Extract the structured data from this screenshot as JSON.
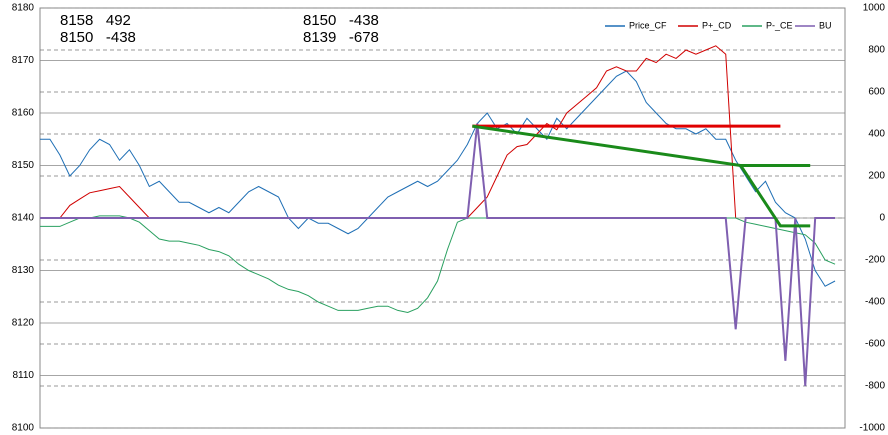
{
  "chart_data": {
    "type": "line",
    "annotations": [
      "8158   492",
      "8150   -438",
      "8150   -438",
      "8139   -678"
    ],
    "categories": [
      null,
      null,
      null,
      null,
      null,
      null,
      null,
      null,
      null,
      null,
      null,
      null,
      null,
      null,
      null,
      null,
      null,
      null,
      null,
      null,
      null,
      null,
      null,
      null,
      null,
      null,
      null,
      null,
      null,
      null,
      null,
      null,
      null,
      null,
      null,
      null,
      null,
      null,
      null,
      null,
      null,
      null,
      null,
      null,
      null,
      null,
      null,
      null,
      null,
      null,
      null,
      null,
      null,
      null,
      null,
      null,
      null,
      null,
      null,
      null,
      null,
      null,
      null,
      null,
      null,
      null,
      null,
      null,
      null,
      null,
      null,
      null,
      null,
      null,
      null,
      null,
      null,
      null,
      null,
      null,
      null
    ],
    "ylim": [
      8100,
      8180
    ],
    "yticks": [
      8100,
      8110,
      8120,
      8130,
      8140,
      8150,
      8160,
      8170,
      8180
    ],
    "y2lim": [
      -1000,
      1000
    ],
    "y2ticks": [
      -1000,
      -800,
      -600,
      -400,
      -200,
      0,
      200,
      400,
      600,
      800,
      1000
    ],
    "legend": "top-right",
    "series": [
      {
        "name": "Price_CF",
        "color": "#1f6fb5",
        "values": [
          8155,
          8155,
          8152,
          8148,
          8150,
          8153,
          8155,
          8154,
          8151,
          8153,
          8150,
          8146,
          8147,
          8145,
          8143,
          8143,
          8142,
          8141,
          8142,
          8141,
          8143,
          8145,
          8146,
          8145,
          8144,
          8140,
          8138,
          8140,
          8139,
          8139,
          8138,
          8137,
          8138,
          8140,
          8142,
          8144,
          8145,
          8146,
          8147,
          8146,
          8147,
          8149,
          8151,
          8154,
          8158,
          8160,
          8157,
          8158,
          8156,
          8159,
          8157,
          8155,
          8159,
          8157,
          8159,
          8161,
          8163,
          8165,
          8167,
          8168,
          8166,
          8162,
          8160,
          8158,
          8157,
          8157,
          8156,
          8157,
          8155,
          8155,
          8151,
          8148,
          8145,
          8147,
          8143,
          8141,
          8140,
          8136,
          8130,
          8127,
          8128
        ]
      },
      {
        "name": "P+_CD",
        "color": "#d00000",
        "axis": "y2",
        "values": [
          0,
          0,
          0,
          60,
          90,
          120,
          130,
          140,
          150,
          100,
          50,
          0,
          0,
          0,
          0,
          0,
          0,
          0,
          0,
          0,
          0,
          0,
          0,
          0,
          0,
          0,
          0,
          0,
          0,
          0,
          0,
          0,
          0,
          0,
          0,
          0,
          0,
          0,
          0,
          0,
          0,
          0,
          0,
          0,
          50,
          100,
          200,
          300,
          340,
          350,
          400,
          450,
          420,
          500,
          540,
          580,
          620,
          700,
          720,
          700,
          700,
          760,
          740,
          780,
          760,
          800,
          780,
          800,
          820,
          780,
          0,
          null,
          null,
          null,
          null,
          null,
          null,
          null,
          null,
          null,
          null
        ]
      },
      {
        "name": "P-_CE",
        "color": "#2aa060",
        "axis": "y2",
        "values": [
          -40,
          -40,
          -40,
          -20,
          0,
          0,
          10,
          10,
          10,
          0,
          -20,
          -60,
          -100,
          -110,
          -110,
          -120,
          -130,
          -150,
          -160,
          -180,
          -220,
          -250,
          -270,
          -290,
          -320,
          -340,
          -350,
          -370,
          -400,
          -420,
          -440,
          -440,
          -440,
          -430,
          -420,
          -420,
          -440,
          -450,
          -430,
          -380,
          -300,
          -150,
          -20,
          0,
          0,
          0,
          0,
          0,
          0,
          0,
          0,
          0,
          0,
          0,
          0,
          0,
          0,
          0,
          0,
          0,
          0,
          0,
          0,
          0,
          0,
          0,
          0,
          0,
          0,
          0,
          0,
          -20,
          -30,
          -40,
          -50,
          -60,
          -70,
          -80,
          -120,
          -200,
          -220
        ]
      },
      {
        "name": "BU",
        "color": "#7f5fb0",
        "axis": "y2",
        "values": [
          0,
          0,
          0,
          0,
          0,
          0,
          0,
          0,
          0,
          0,
          0,
          0,
          0,
          0,
          0,
          0,
          0,
          0,
          0,
          0,
          0,
          0,
          0,
          0,
          0,
          0,
          0,
          0,
          0,
          0,
          0,
          0,
          0,
          0,
          0,
          0,
          0,
          0,
          0,
          0,
          0,
          0,
          0,
          0,
          450,
          0,
          0,
          0,
          0,
          0,
          0,
          0,
          0,
          0,
          0,
          0,
          0,
          0,
          0,
          0,
          0,
          0,
          0,
          0,
          0,
          0,
          0,
          0,
          0,
          0,
          -530,
          0,
          0,
          0,
          0,
          -680,
          0,
          -800,
          0,
          0,
          0
        ]
      }
    ],
    "overlays": [
      {
        "color": "#e00000",
        "x": [
          43.5,
          74.5
        ],
        "y": [
          8157.5,
          8157.5
        ]
      },
      {
        "color": "#1a8a1a",
        "x": [
          43.5,
          70.5,
          74.5,
          77.5
        ],
        "y": [
          8157.5,
          8150,
          8138.5,
          8138.5
        ]
      },
      {
        "color": "#1a8a1a",
        "x": [
          70.5,
          77.5
        ],
        "y": [
          8150,
          8150
        ]
      }
    ]
  }
}
